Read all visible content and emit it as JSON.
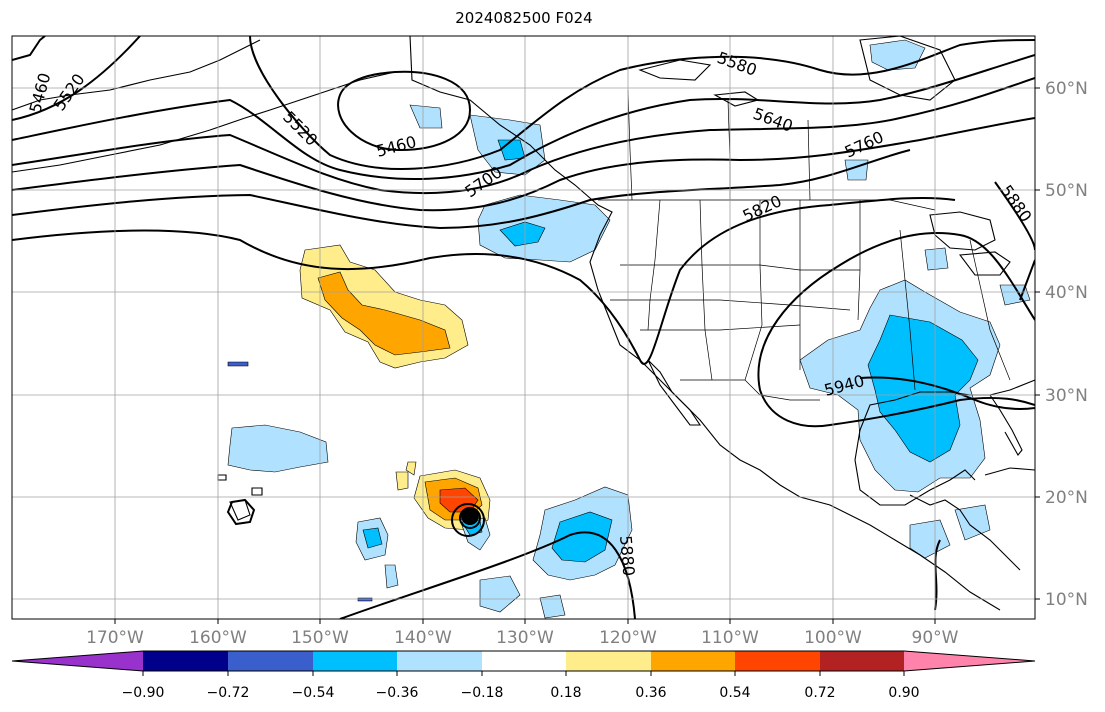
{
  "title": "2024082500 F024",
  "map": {
    "lon_labels": [
      "170°W",
      "160°W",
      "150°W",
      "140°W",
      "130°W",
      "120°W",
      "110°W",
      "100°W",
      "90°W"
    ],
    "lat_labels": [
      "60°N",
      "50°N",
      "40°N",
      "30°N",
      "20°N",
      "10°N"
    ],
    "contour_labels": [
      "5460",
      "5520",
      "5520",
      "5460",
      "5700",
      "5580",
      "5640",
      "5760",
      "5820",
      "5880",
      "5940",
      "5880"
    ],
    "center_marker": "black-dot"
  },
  "colorbar": {
    "colors": [
      "#9932cc",
      "#00008b",
      "#3a5fcd",
      "#00bfff",
      "#b0e2ff",
      "#ffffff",
      "#ffec8b",
      "#ffa500",
      "#ff4500",
      "#b22222",
      "#ff83aa"
    ],
    "tick_labels": [
      "−0.90",
      "−0.72",
      "−0.54",
      "−0.36",
      "−0.18",
      "0.18",
      "0.36",
      "0.54",
      "0.72",
      "0.90"
    ]
  }
}
